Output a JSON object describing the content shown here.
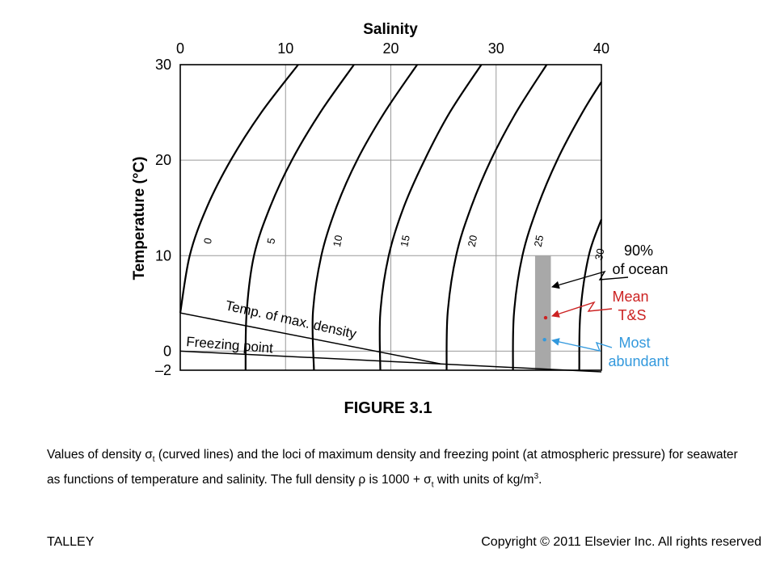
{
  "chart_data": {
    "type": "line",
    "xlabel": "Salinity",
    "ylabel": "Temperature (°C)",
    "xlim": [
      0,
      40
    ],
    "ylim": [
      -2,
      30
    ],
    "x_ticks": [
      "0",
      "10",
      "20",
      "30",
      "40"
    ],
    "y_ticks": [
      "30",
      "20",
      "10",
      "0",
      "–2"
    ],
    "grid": true,
    "sigma_t_isopycnals": [
      {
        "name": "0",
        "points": [
          [
            0.0,
            4
          ],
          [
            0.9,
            10
          ],
          [
            2.5,
            15
          ],
          [
            4.8,
            20
          ],
          [
            7.7,
            25
          ],
          [
            11.2,
            30
          ]
        ]
      },
      {
        "name": "5",
        "points": [
          [
            6.2,
            -2
          ],
          [
            6.3,
            4
          ],
          [
            7.0,
            10
          ],
          [
            8.5,
            15
          ],
          [
            10.6,
            20
          ],
          [
            13.3,
            25
          ],
          [
            16.5,
            30
          ]
        ]
      },
      {
        "name": "10",
        "points": [
          [
            12.7,
            -2
          ],
          [
            12.6,
            4
          ],
          [
            13.4,
            10
          ],
          [
            14.8,
            15
          ],
          [
            16.8,
            20
          ],
          [
            19.4,
            25
          ],
          [
            22.5,
            30
          ]
        ]
      },
      {
        "name": "15",
        "points": [
          [
            19.0,
            -2
          ],
          [
            19.0,
            4
          ],
          [
            19.8,
            10
          ],
          [
            21.2,
            15
          ],
          [
            23.2,
            20
          ],
          [
            25.6,
            25
          ],
          [
            28.6,
            30
          ]
        ]
      },
      {
        "name": "20",
        "points": [
          [
            25.3,
            -2
          ],
          [
            25.4,
            4
          ],
          [
            26.2,
            10
          ],
          [
            27.6,
            15
          ],
          [
            29.5,
            20
          ],
          [
            31.9,
            25
          ],
          [
            34.8,
            30
          ]
        ]
      },
      {
        "name": "25",
        "points": [
          [
            31.6,
            -2
          ],
          [
            31.7,
            4
          ],
          [
            32.5,
            10
          ],
          [
            33.9,
            15
          ],
          [
            35.8,
            20
          ],
          [
            38.2,
            25
          ],
          [
            40.0,
            28.2
          ]
        ]
      },
      {
        "name": "30",
        "points": [
          [
            37.9,
            -2
          ],
          [
            38.0,
            4
          ],
          [
            38.8,
            10
          ],
          [
            40.0,
            13.8
          ]
        ]
      }
    ],
    "temp_max_density": {
      "label": "Temp. of max. density",
      "points": [
        [
          0,
          4.0
        ],
        [
          24.7,
          -1.33
        ]
      ]
    },
    "freezing_point": {
      "label": "Freezing point",
      "points": [
        [
          0,
          0.0
        ],
        [
          40,
          -2.17
        ]
      ]
    },
    "ocean_band": {
      "s_range": [
        33.7,
        35.2
      ],
      "t_range": [
        -2,
        10
      ]
    },
    "annotations": {
      "ocean": {
        "line1": "90%",
        "line2": "of ocean",
        "color": "#000000"
      },
      "mean": {
        "line1": "Mean",
        "line2": "T&S",
        "color": "#cc2222",
        "point": [
          34.7,
          3.5
        ]
      },
      "abundant": {
        "line1": "Most",
        "line2": "abundant",
        "color": "#3399dd",
        "point": [
          34.6,
          1.2
        ]
      }
    }
  },
  "figure_label": "FIGURE 3.1",
  "caption": {
    "part1": "Values of density σ",
    "sub1": "t",
    "part2": " (curved lines) and the loci of maximum density and freezing point (at atmospheric pressure) for seawater as functions of temperature and salinity. The full density ρ is 1000 + σ",
    "sub2": "t",
    "part3": " with units of kg/m",
    "sup": "3",
    "part4": "."
  },
  "footer": {
    "left": "TALLEY",
    "right": "Copyright © 2011 Elsevier Inc. All rights reserved"
  }
}
